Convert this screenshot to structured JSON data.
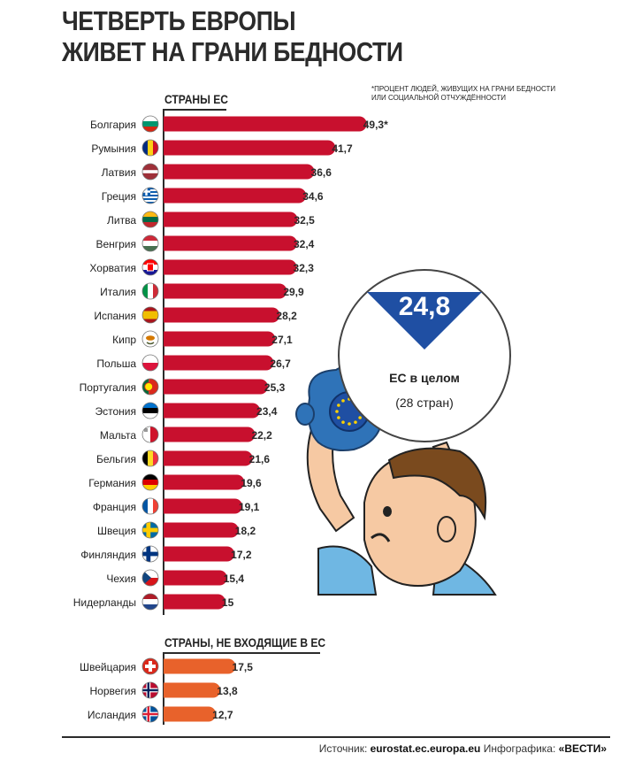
{
  "title_line1": "ЧЕТВЕРТЬ ЕВРОПЫ",
  "title_line2": "ЖИВЕТ НА ГРАНИ БЕДНОСТИ",
  "footnote": "*ПРОЦЕНТ ЛЮДЕЙ, ЖИВУЩИХ НА ГРАНИ БЕДНОСТИ ИЛИ СОЦИАЛЬНОЙ ОТЧУЖДЁННОСТИ",
  "section_eu": "СТРАНЫ ЕС",
  "section_non_eu": "СТРАНЫ, НЕ ВХОДЯЩИЕ В ЕС",
  "eu_average": {
    "value": "24,8",
    "label": "ЕС в целом",
    "sub": "(28 стран)"
  },
  "footer": {
    "source_label": "Источник:",
    "source": "eurostat.ec.europa.eu",
    "infographic_label": "Инфографика:",
    "infographic": "«ВЕСТИ»"
  },
  "colors": {
    "eu_bar": "#c8102e",
    "non_eu_bar": "#e8622b",
    "average_blue": "#1f4fa3"
  },
  "chart_data": [
    {
      "type": "bar",
      "orientation": "horizontal",
      "title": "СТРАНЫ ЕС",
      "categories": [
        "Болгария",
        "Румыния",
        "Латвия",
        "Греция",
        "Литва",
        "Венгрия",
        "Хорватия",
        "Италия",
        "Испания",
        "Кипр",
        "Польша",
        "Португалия",
        "Эстония",
        "Мальта",
        "Бельгия",
        "Германия",
        "Франция",
        "Швеция",
        "Финляндия",
        "Чехия",
        "Нидерланды"
      ],
      "values": [
        49.3,
        41.7,
        36.6,
        34.6,
        32.5,
        32.4,
        32.3,
        29.9,
        28.2,
        27.1,
        26.7,
        25.3,
        23.4,
        22.2,
        21.6,
        19.6,
        19.1,
        18.2,
        17.2,
        15.4,
        15
      ],
      "labels": [
        "49,3*",
        "41,7",
        "36,6",
        "34,6",
        "32,5",
        "32,4",
        "32,3",
        "29,9",
        "28,2",
        "27,1",
        "26,7",
        "25,3",
        "23,4",
        "22,2",
        "21,6",
        "19,6",
        "19,1",
        "18,2",
        "17,2",
        "15,4",
        "15"
      ],
      "flags": [
        "bulgaria-flag",
        "romania-flag",
        "latvia-flag",
        "greece-flag",
        "lithuania-flag",
        "hungary-flag",
        "croatia-flag",
        "italy-flag",
        "spain-flag",
        "cyprus-flag",
        "poland-flag",
        "portugal-flag",
        "estonia-flag",
        "malta-flag",
        "belgium-flag",
        "germany-flag",
        "france-flag",
        "sweden-flag",
        "finland-flag",
        "czechia-flag",
        "netherlands-flag"
      ],
      "xlim": [
        0,
        50
      ],
      "grid": false,
      "bar_color": "#c8102e"
    },
    {
      "type": "bar",
      "orientation": "horizontal",
      "title": "СТРАНЫ, НЕ ВХОДЯЩИЕ В ЕС",
      "categories": [
        "Швейцария",
        "Норвегия",
        "Исландия"
      ],
      "values": [
        17.5,
        13.8,
        12.7
      ],
      "labels": [
        "17,5",
        "13,8",
        "12,7"
      ],
      "flags": [
        "switzerland-flag",
        "norway-flag",
        "iceland-flag"
      ],
      "xlim": [
        0,
        50
      ],
      "grid": false,
      "bar_color": "#e8622b"
    }
  ]
}
